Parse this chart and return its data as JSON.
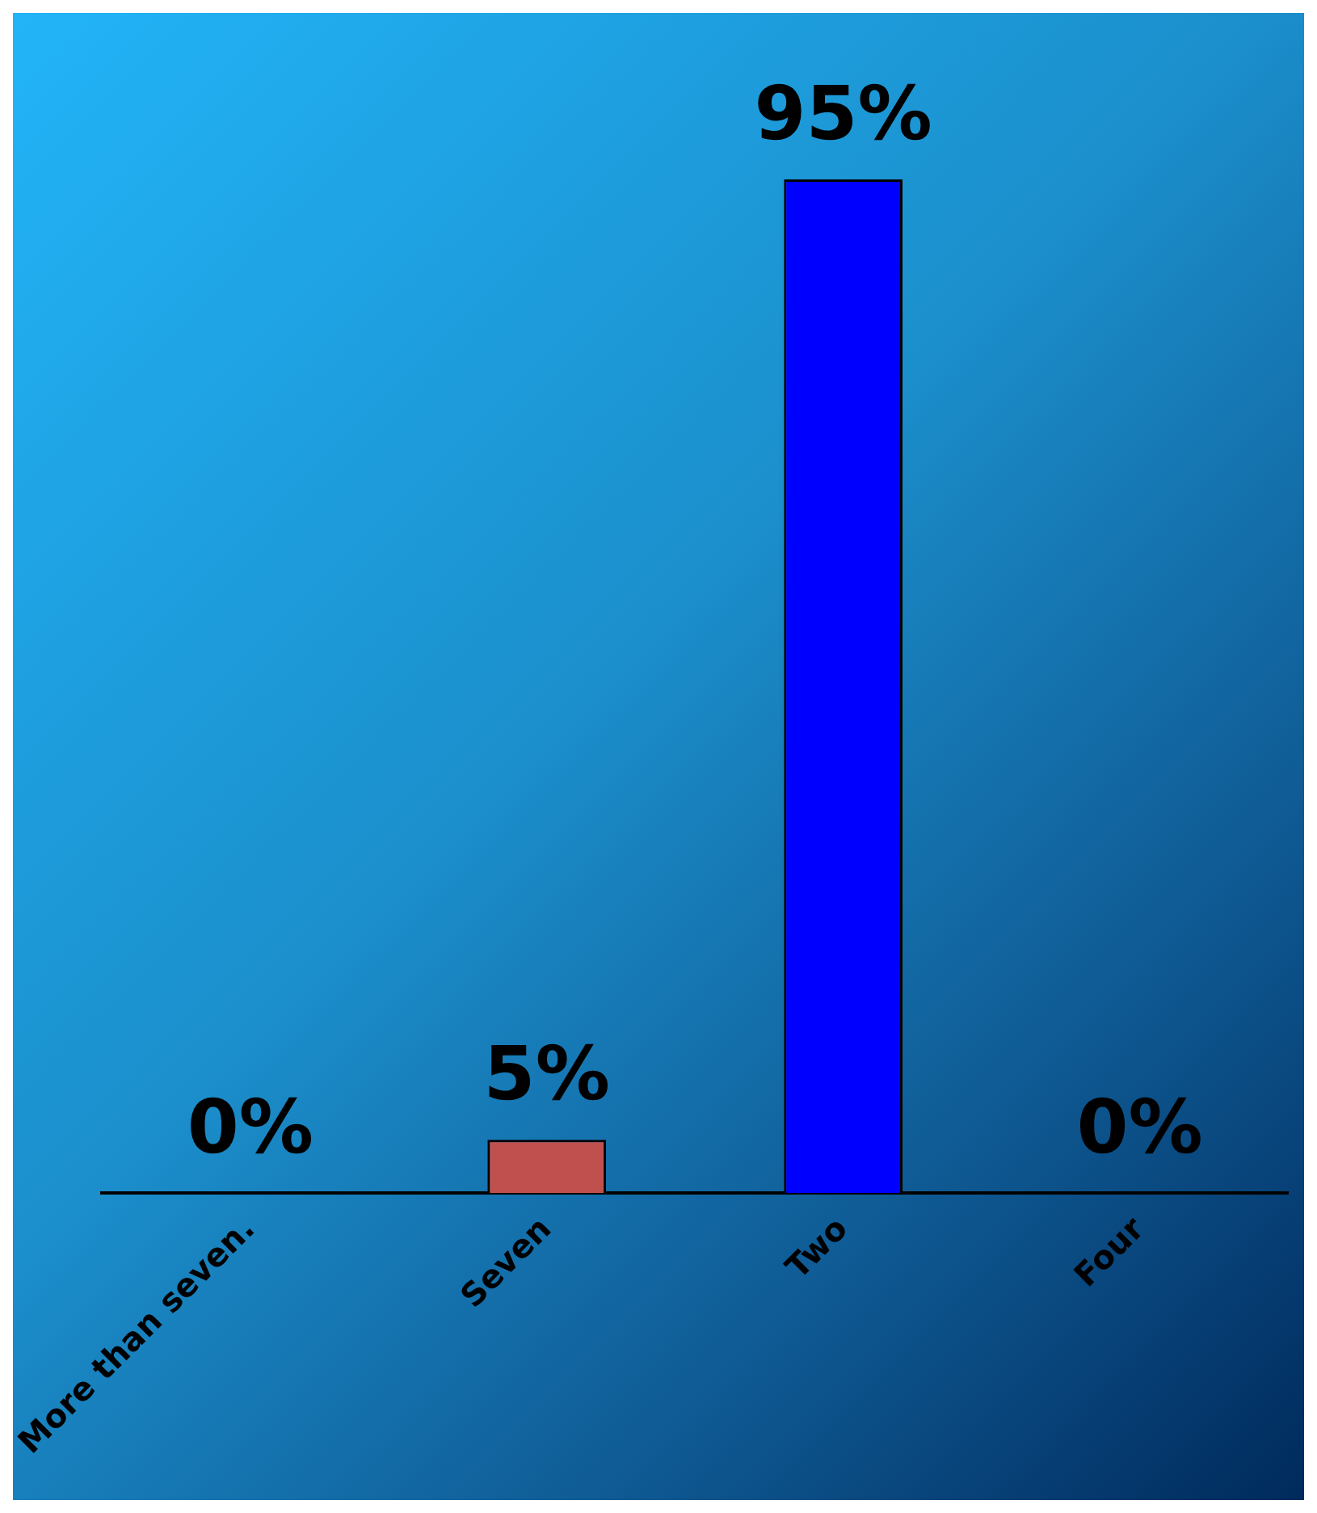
{
  "chart_data": {
    "type": "bar",
    "categories": [
      "More than seven.",
      "Seven",
      "Two",
      "Four"
    ],
    "values": [
      0,
      5,
      95,
      0
    ],
    "colors": [
      "#3f6a9a",
      "#c0504d",
      "#0000ff",
      "#660066"
    ],
    "value_labels": [
      "0%",
      "5%",
      "95%",
      "0%"
    ],
    "grid": false,
    "legend": false
  }
}
